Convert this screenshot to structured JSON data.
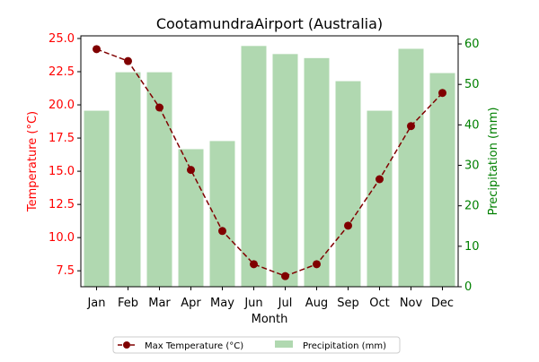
{
  "chart_data": {
    "type": "bar+line",
    "title": "CootamundraAirport (Australia)",
    "xlabel": "Month",
    "ylabel_left": "Temperature (°C)",
    "ylabel_right": "Precipitation (mm)",
    "categories": [
      "Jan",
      "Feb",
      "Mar",
      "Apr",
      "May",
      "Jun",
      "Jul",
      "Aug",
      "Sep",
      "Oct",
      "Nov",
      "Dec"
    ],
    "left_axis": {
      "min": 6.3,
      "max": 25.2,
      "ticks": [
        7.5,
        10.0,
        12.5,
        15.0,
        17.5,
        20.0,
        22.5,
        25.0
      ],
      "tick_labels": [
        "7.5",
        "10.0",
        "12.5",
        "15.0",
        "17.5",
        "20.0",
        "22.5",
        "25.0"
      ]
    },
    "right_axis": {
      "min": 0,
      "max": 62,
      "ticks": [
        0,
        10,
        20,
        30,
        40,
        50,
        60
      ],
      "tick_labels": [
        "0",
        "10",
        "20",
        "30",
        "40",
        "50",
        "60"
      ]
    },
    "series": [
      {
        "name": "Max Temperature (°C)",
        "kind": "line",
        "axis": "left",
        "color": "#800000",
        "values": [
          24.2,
          23.3,
          19.8,
          15.1,
          10.5,
          8.0,
          7.1,
          8.0,
          10.9,
          14.4,
          18.4,
          20.9
        ]
      },
      {
        "name": "Precipitation (mm)",
        "kind": "bar",
        "axis": "right",
        "color": "#b0d8b0",
        "values": [
          43.5,
          53.0,
          53.0,
          34.0,
          36.0,
          59.5,
          57.5,
          56.5,
          50.8,
          43.5,
          58.8,
          52.8
        ]
      }
    ],
    "legend": {
      "placement": "bottom-center",
      "entries": [
        "Max Temperature (°C)",
        "Precipitation (mm)"
      ]
    },
    "grid": false,
    "colors": {
      "left_axis": "#ff0000",
      "right_axis": "#008000"
    }
  }
}
